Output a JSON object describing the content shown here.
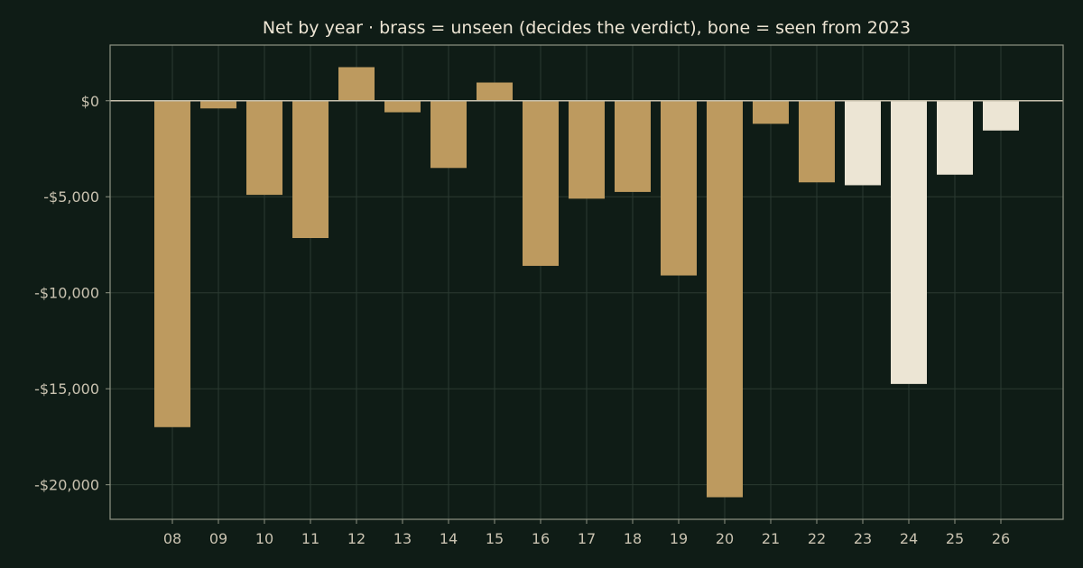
{
  "chart_data": {
    "type": "bar",
    "title": "Net by year  ·  brass = unseen (decides the verdict), bone = seen from 2023",
    "xlabel": "",
    "ylabel": "",
    "categories": [
      "08",
      "09",
      "10",
      "11",
      "12",
      "13",
      "14",
      "15",
      "16",
      "17",
      "18",
      "19",
      "20",
      "21",
      "22",
      "23",
      "24",
      "25",
      "26"
    ],
    "values": [
      -17000,
      -400,
      -4900,
      -7150,
      1750,
      -600,
      -3500,
      950,
      -8600,
      -5100,
      -4750,
      -9100,
      -20650,
      -1200,
      -4250,
      -4400,
      -14750,
      -3850,
      -1550
    ],
    "seen": [
      false,
      false,
      false,
      false,
      false,
      false,
      false,
      false,
      false,
      false,
      false,
      false,
      false,
      false,
      false,
      true,
      true,
      true,
      true
    ],
    "ylim": [
      -21800,
      2900
    ],
    "yticks": [
      0,
      -5000,
      -10000,
      -15000,
      -20000
    ],
    "ytick_labels": [
      "$0",
      "-$5,000",
      "-$10,000",
      "-$15,000",
      "-$20,000"
    ],
    "grid": true,
    "colors": {
      "unseen": "#bd9a5f",
      "seen": "#ece5d4",
      "background": "#0f1c16",
      "grid": "#2b3a31",
      "text": "#c9c2b0"
    }
  }
}
